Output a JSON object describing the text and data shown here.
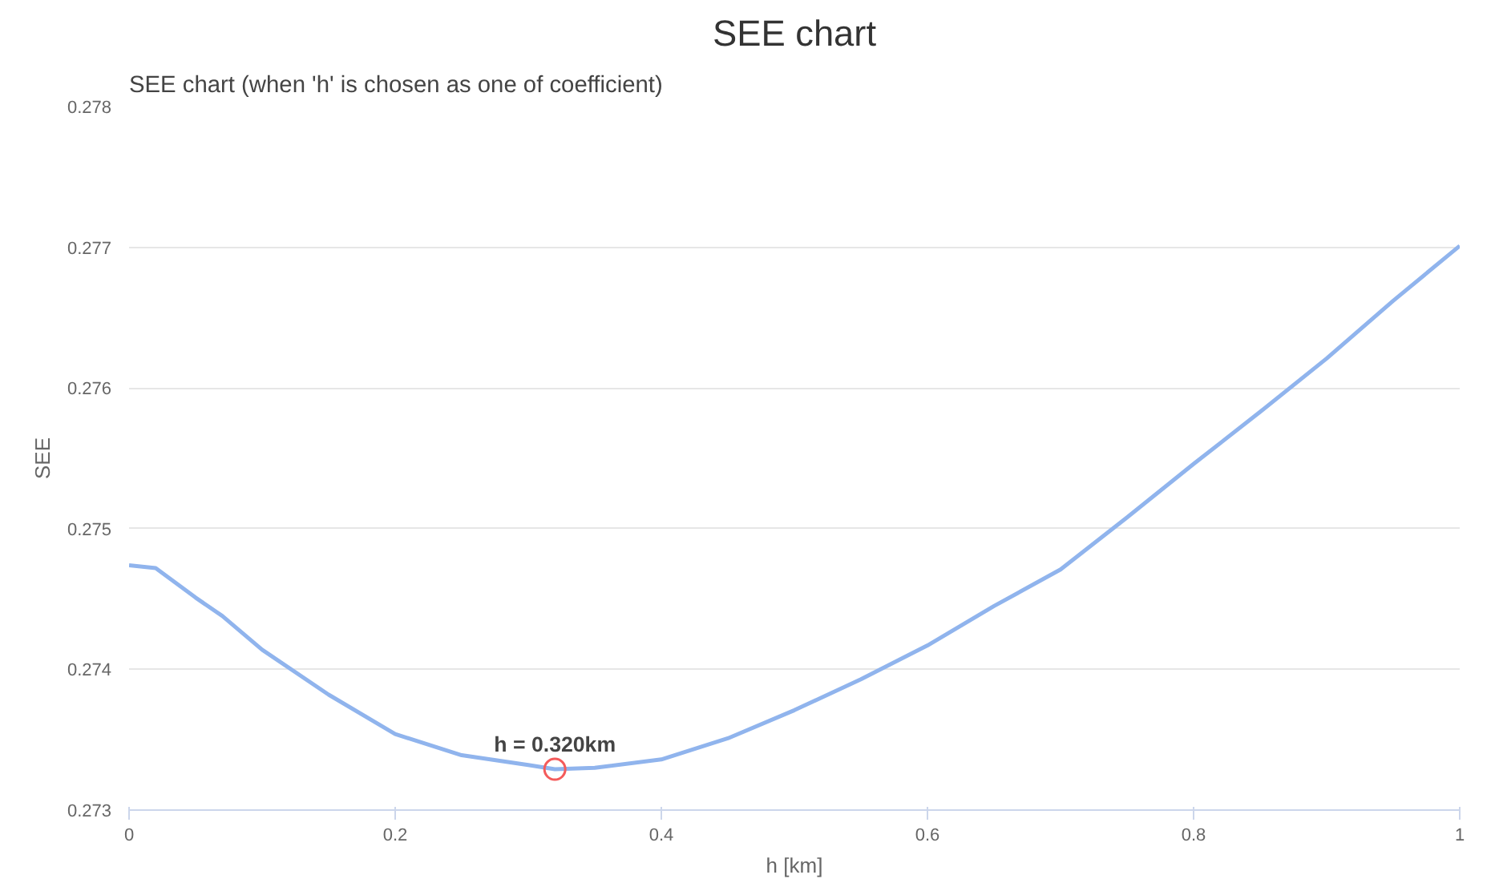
{
  "chart_data": {
    "type": "line",
    "title": "SEE chart",
    "xlabel": "h [km]",
    "ylabel": "SEE",
    "xlim": [
      0,
      1
    ],
    "xticks": [
      0,
      0.2,
      0.4,
      0.6,
      0.8,
      1
    ],
    "ylim": [
      0.273,
      0.278
    ],
    "yticks": [
      0.273,
      0.274,
      0.275,
      0.276,
      0.277,
      0.278
    ],
    "grid": "y",
    "marker": "none",
    "line_style": "solid",
    "annotations": [
      "SEE chart (when 'h' is chosen as one of coefficient)",
      {
        "text": "h = 0.320km",
        "x": 0.32,
        "y": 0.27329
      }
    ],
    "x": [
      0,
      0.02,
      0.05,
      0.07,
      0.1,
      0.15,
      0.2,
      0.25,
      0.3,
      0.32,
      0.35,
      0.4,
      0.45,
      0.5,
      0.55,
      0.6,
      0.65,
      0.7,
      0.75,
      0.8,
      0.85,
      0.9,
      0.95,
      1
    ],
    "series": [
      {
        "color": "#90b4ed",
        "values": [
          0.27474,
          0.27472,
          0.27451,
          0.27438,
          0.27414,
          0.27382,
          0.27354,
          0.27339,
          0.27332,
          0.27329,
          0.2733,
          0.27336,
          0.27351,
          0.27371,
          0.27393,
          0.27417,
          0.27445,
          0.27471,
          0.27508,
          0.27546,
          0.27583,
          0.27621,
          0.27662,
          0.27701
        ]
      },
      {
        "type": "scatter",
        "marker": "circle",
        "color": "#f45b5b",
        "x": [
          0.32
        ],
        "values": [
          0.27329
        ]
      }
    ]
  }
}
